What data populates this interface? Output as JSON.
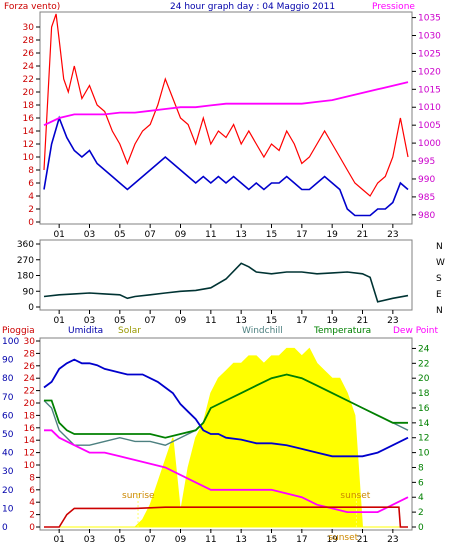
{
  "header": {
    "left": "Forza vento)",
    "center": "24 hour graph day : 04 Maggio 2011",
    "right": "Pressione"
  },
  "colors": {
    "wind_max": "#ff0000",
    "wind_avg": "#0000cc",
    "pressure": "#ff00ff",
    "direction": "#003333",
    "humidity": "#0000cc",
    "solar": "#ffff00",
    "windchill": "#4d8080",
    "temperature": "#008000",
    "dewpoint": "#ff00ff",
    "rain": "#cc0000",
    "left_axis_wind": "#cc0000",
    "left_axis_bottom": "#0000aa"
  },
  "chart_data": [
    {
      "type": "line",
      "title": "24 hour graph day : 04 Maggio 2011",
      "x_ticks": [
        "01",
        "03",
        "05",
        "07",
        "09",
        "11",
        "13",
        "15",
        "17",
        "19",
        "21",
        "23"
      ],
      "y_left_label": "Forza vento)",
      "y_left_ticks": [
        0,
        2,
        4,
        6,
        8,
        10,
        12,
        14,
        16,
        18,
        20,
        22,
        24,
        26,
        28,
        30
      ],
      "y_left_range": [
        0,
        32
      ],
      "y_right_label": "Pressione",
      "y_right_ticks": [
        980,
        985,
        990,
        995,
        1000,
        1005,
        1010,
        1015,
        1020,
        1025,
        1030,
        1035
      ],
      "y_right_range": [
        978,
        1036
      ],
      "series": [
        {
          "name": "wind gust",
          "axis": "left",
          "x": [
            0,
            0.5,
            0.8,
            1,
            1.3,
            1.6,
            2,
            2.5,
            3,
            3.5,
            4,
            4.5,
            5,
            5.5,
            6,
            6.5,
            7,
            7.5,
            8,
            8.5,
            9,
            9.5,
            10,
            10.5,
            11,
            11.5,
            12,
            12.5,
            13,
            13.5,
            14,
            14.5,
            15,
            15.5,
            16,
            16.5,
            17,
            17.5,
            18,
            18.5,
            19,
            19.5,
            20,
            20.5,
            21,
            21.5,
            22,
            22.5,
            23,
            23.5,
            24
          ],
          "y": [
            8,
            30,
            32,
            28,
            22,
            20,
            24,
            19,
            21,
            18,
            17,
            14,
            12,
            9,
            12,
            14,
            15,
            18,
            22,
            19,
            16,
            15,
            12,
            16,
            12,
            14,
            13,
            15,
            12,
            14,
            12,
            10,
            12,
            11,
            14,
            12,
            9,
            10,
            12,
            14,
            12,
            10,
            8,
            6,
            5,
            4,
            6,
            7,
            10,
            16,
            10
          ]
        },
        {
          "name": "wind avg",
          "axis": "left",
          "x": [
            0,
            0.5,
            1,
            1.5,
            2,
            2.5,
            3,
            3.5,
            4,
            4.5,
            5,
            5.5,
            6,
            6.5,
            7,
            7.5,
            8,
            8.5,
            9,
            9.5,
            10,
            10.5,
            11,
            11.5,
            12,
            12.5,
            13,
            13.5,
            14,
            14.5,
            15,
            15.5,
            16,
            16.5,
            17,
            17.5,
            18,
            18.5,
            19,
            19.5,
            20,
            20.5,
            21,
            21.5,
            22,
            22.5,
            23,
            23.5,
            24
          ],
          "y": [
            5,
            12,
            16,
            13,
            11,
            10,
            11,
            9,
            8,
            7,
            6,
            5,
            6,
            7,
            8,
            9,
            10,
            9,
            8,
            7,
            6,
            7,
            6,
            7,
            6,
            7,
            6,
            5,
            6,
            5,
            6,
            6,
            7,
            6,
            5,
            5,
            6,
            7,
            6,
            5,
            2,
            1,
            1,
            1,
            2,
            2,
            3,
            6,
            5
          ]
        },
        {
          "name": "pressure",
          "axis": "right",
          "x": [
            0,
            1,
            2,
            3,
            4,
            5,
            6,
            7,
            8,
            9,
            10,
            11,
            12,
            13,
            14,
            15,
            16,
            17,
            18,
            19,
            20,
            21,
            22,
            23,
            24
          ],
          "y": [
            1005,
            1007,
            1008,
            1008,
            1008,
            1008.5,
            1008.5,
            1009,
            1009.5,
            1010,
            1010,
            1010.5,
            1011,
            1011,
            1011,
            1011,
            1011,
            1011,
            1011.5,
            1012,
            1013,
            1014,
            1015,
            1016,
            1017
          ]
        }
      ]
    },
    {
      "type": "line",
      "title": "",
      "x_ticks": [
        "01",
        "03",
        "05",
        "07",
        "09",
        "11",
        "13",
        "15",
        "17",
        "19",
        "21",
        "23"
      ],
      "y_left_ticks": [
        0,
        90,
        180,
        270,
        360
      ],
      "y_left_range": [
        0,
        360
      ],
      "y_right_ticks": [
        "N",
        "W",
        "S",
        "E",
        "N"
      ],
      "series": [
        {
          "name": "wind direction",
          "x": [
            0,
            1,
            2,
            3,
            4,
            5,
            5.5,
            6,
            7,
            8,
            9,
            10,
            11,
            12,
            13,
            13.5,
            14,
            15,
            16,
            17,
            18,
            19,
            20,
            21,
            21.5,
            22,
            23,
            24
          ],
          "y": [
            60,
            70,
            75,
            80,
            75,
            70,
            50,
            60,
            70,
            80,
            90,
            95,
            110,
            160,
            250,
            230,
            200,
            190,
            200,
            200,
            190,
            195,
            200,
            190,
            170,
            30,
            50,
            65
          ]
        }
      ]
    },
    {
      "type": "line",
      "title": "",
      "legend": [
        "Pioggia",
        "Umidita",
        "Solar",
        "Windchill",
        "Temperatura",
        "Dew Point"
      ],
      "x_ticks": [
        "01",
        "03",
        "05",
        "07",
        "09",
        "11",
        "13",
        "15",
        "17",
        "19",
        "21",
        "23"
      ],
      "y_humidity_ticks": [
        0,
        10,
        20,
        30,
        40,
        50,
        60,
        70,
        80,
        90,
        100
      ],
      "y_rain_ticks": [
        0,
        2,
        4,
        6,
        8,
        10,
        12,
        14,
        16,
        18,
        20,
        22,
        24,
        26,
        28,
        30
      ],
      "y_right_ticks": [
        0,
        2,
        4,
        6,
        8,
        10,
        12,
        14,
        16,
        18,
        20,
        22,
        24
      ],
      "y_right_range": [
        0,
        25
      ],
      "annotations": [
        {
          "text": "sunrise",
          "x": 6.2
        },
        {
          "text": "sunset",
          "x": 20.6
        },
        {
          "text": "sunset",
          "x": 19.8
        }
      ],
      "series": [
        {
          "name": "Umidita",
          "axis": "humidity",
          "x": [
            0,
            0.5,
            1,
            1.5,
            2,
            2.5,
            3,
            3.5,
            4,
            4.5,
            5,
            5.5,
            6,
            6.5,
            7,
            7.5,
            8,
            8.5,
            9,
            9.5,
            10,
            10.5,
            11,
            11.5,
            12,
            13,
            14,
            15,
            16,
            17,
            18,
            19,
            20,
            21,
            22,
            23,
            24
          ],
          "y": [
            75,
            78,
            85,
            88,
            90,
            88,
            88,
            87,
            85,
            84,
            83,
            82,
            82,
            82,
            80,
            78,
            75,
            72,
            66,
            62,
            58,
            52,
            50,
            50,
            48,
            47,
            45,
            45,
            44,
            42,
            40,
            38,
            38,
            38,
            40,
            44,
            48
          ]
        },
        {
          "name": "Solar",
          "axis": "right",
          "x": [
            0,
            6,
            6.5,
            7,
            7.5,
            8,
            8.5,
            9,
            9.5,
            10,
            10.5,
            11,
            11.5,
            12,
            12.5,
            13,
            13.5,
            14,
            14.5,
            15,
            15.5,
            16,
            16.5,
            17,
            17.5,
            18,
            18.5,
            19,
            19.5,
            20,
            20.5,
            21,
            24
          ],
          "y": [
            0,
            0,
            1,
            3,
            6,
            9,
            12,
            2,
            8,
            12,
            14,
            18,
            20,
            21,
            22,
            22,
            23,
            23,
            22,
            23,
            23,
            24,
            24,
            23,
            24,
            22,
            21,
            20,
            20,
            18,
            15,
            0,
            0
          ]
        },
        {
          "name": "Windchill",
          "axis": "right",
          "x": [
            0,
            0.5,
            1,
            1.5,
            2,
            3,
            4,
            5,
            6,
            7,
            8,
            9,
            10,
            10.5,
            11,
            12,
            13,
            14,
            15,
            16,
            17,
            18,
            19,
            20,
            21,
            22,
            23,
            24
          ],
          "y": [
            17,
            16,
            13,
            12,
            11,
            11,
            11.5,
            12,
            11.5,
            11.5,
            11,
            12,
            13,
            14,
            16,
            17,
            18,
            19,
            20,
            20.5,
            20,
            19,
            18,
            17,
            16,
            15,
            14,
            13
          ]
        },
        {
          "name": "Temperatura",
          "axis": "right",
          "x": [
            0,
            0.5,
            1,
            1.5,
            2,
            3,
            4,
            5,
            6,
            7,
            8,
            9,
            10,
            10.5,
            11,
            12,
            13,
            14,
            15,
            16,
            17,
            18,
            19,
            20,
            21,
            22,
            23,
            24
          ],
          "y": [
            17,
            17,
            14,
            13,
            12.5,
            12.5,
            12.5,
            12.5,
            12.5,
            12.5,
            12,
            12.5,
            13,
            14,
            16,
            17,
            18,
            19,
            20,
            20.5,
            20,
            19,
            18,
            17,
            16,
            15,
            14,
            14
          ]
        },
        {
          "name": "Dew Point",
          "axis": "right",
          "x": [
            0,
            0.5,
            1,
            2,
            3,
            4,
            5,
            6,
            7,
            8,
            9,
            10,
            11,
            12,
            13,
            14,
            15,
            16,
            17,
            18,
            19,
            20,
            21,
            22,
            23,
            24
          ],
          "y": [
            13,
            13,
            12,
            11,
            10,
            10,
            9.5,
            9,
            8.5,
            8,
            7,
            6,
            5,
            5,
            5,
            5,
            5,
            4.5,
            4,
            3,
            2.5,
            2,
            2,
            2,
            3,
            4
          ]
        },
        {
          "name": "Pioggia",
          "axis": "rain",
          "x": [
            0,
            1,
            1.5,
            2,
            2.5,
            3,
            4,
            5,
            6,
            8,
            10,
            12,
            14,
            16,
            18,
            20,
            22,
            23,
            23.4,
            23.5,
            24
          ],
          "y": [
            0,
            0,
            2,
            3,
            3,
            3,
            3,
            3,
            3,
            3.2,
            3.2,
            3.2,
            3.2,
            3.2,
            3.2,
            3.2,
            3.2,
            3.2,
            3.2,
            0,
            0
          ]
        }
      ]
    }
  ]
}
